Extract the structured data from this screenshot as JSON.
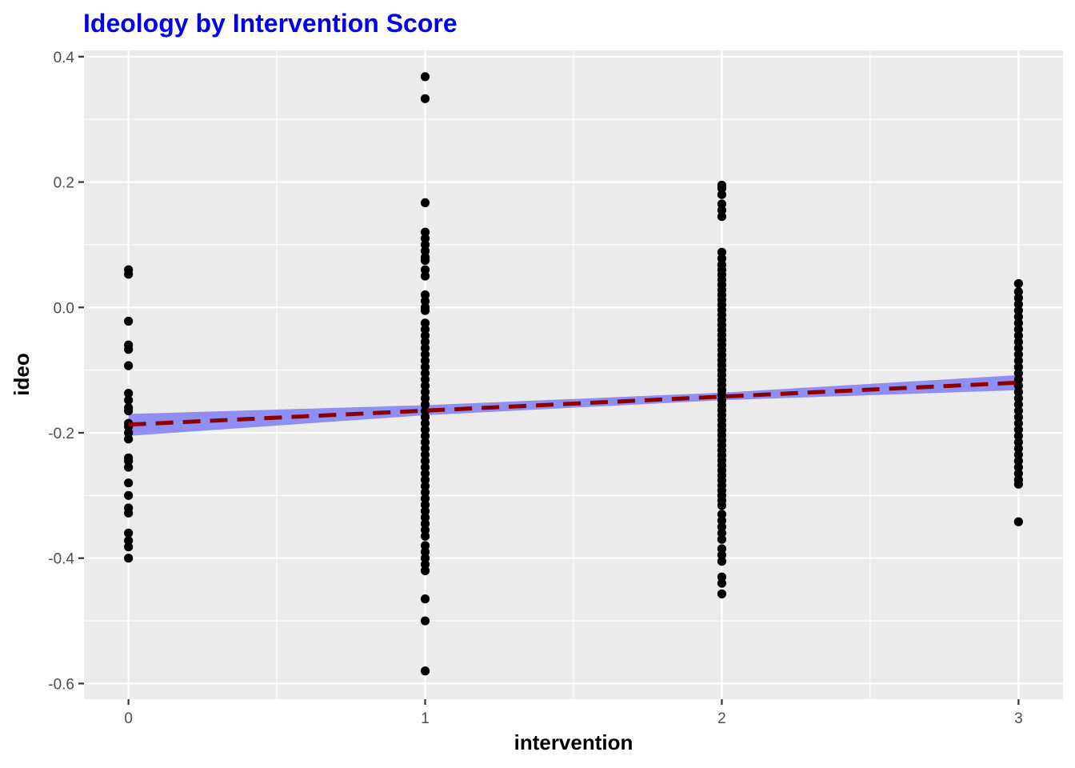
{
  "chart_data": {
    "type": "scatter",
    "title": "Ideology by Intervention Score",
    "xlabel": "intervention",
    "ylabel": "ideo",
    "xlim": [
      -0.15,
      3.15
    ],
    "ylim": [
      -0.625,
      0.41
    ],
    "x_ticks": [
      0,
      1,
      2,
      3
    ],
    "x_tick_labels": [
      "0",
      "1",
      "2",
      "3"
    ],
    "x_minor_ticks": [
      0.5,
      1.5,
      2.5
    ],
    "y_ticks": [
      -0.6,
      -0.4,
      -0.2,
      0.0,
      0.2,
      0.4
    ],
    "y_tick_labels": [
      "-0.6",
      "-0.4",
      "-0.2",
      "0.0",
      "0.2",
      "0.4"
    ],
    "y_minor_ticks": [
      -0.5,
      -0.3,
      -0.1,
      0.1,
      0.3
    ],
    "grid": true,
    "background": "#ebebeb",
    "grid_color": "#ffffff",
    "title_color": "#0000ee",
    "point_color": "#000000",
    "series": [
      {
        "x": 0,
        "y": [
          0.06,
          0.053,
          -0.022,
          -0.06,
          -0.067,
          -0.093,
          -0.137,
          -0.148,
          -0.16,
          -0.165,
          -0.185,
          -0.19,
          -0.2,
          -0.21,
          -0.24,
          -0.245,
          -0.255,
          -0.28,
          -0.3,
          -0.32,
          -0.328,
          -0.36,
          -0.372,
          -0.382,
          -0.4
        ]
      },
      {
        "x": 1,
        "y": [
          0.368,
          0.333,
          0.167,
          0.12,
          0.11,
          0.1,
          0.09,
          0.08,
          0.075,
          0.06,
          0.05,
          0.02,
          0.01,
          0.0,
          -0.005,
          -0.025,
          -0.035,
          -0.045,
          -0.055,
          -0.065,
          -0.075,
          -0.085,
          -0.095,
          -0.105,
          -0.115,
          -0.125,
          -0.135,
          -0.145,
          -0.155,
          -0.165,
          -0.175,
          -0.185,
          -0.195,
          -0.205,
          -0.215,
          -0.225,
          -0.235,
          -0.245,
          -0.255,
          -0.265,
          -0.275,
          -0.285,
          -0.295,
          -0.305,
          -0.315,
          -0.325,
          -0.335,
          -0.345,
          -0.355,
          -0.365,
          -0.38,
          -0.39,
          -0.4,
          -0.41,
          -0.42,
          -0.465,
          -0.5,
          -0.58
        ]
      },
      {
        "x": 2,
        "y": [
          0.195,
          0.19,
          0.18,
          0.165,
          0.155,
          0.145,
          0.088,
          0.078,
          0.068,
          0.06,
          0.052,
          0.044,
          0.036,
          0.028,
          0.02,
          0.012,
          0.004,
          -0.004,
          -0.012,
          -0.02,
          -0.028,
          -0.036,
          -0.044,
          -0.052,
          -0.06,
          -0.068,
          -0.076,
          -0.084,
          -0.092,
          -0.1,
          -0.108,
          -0.116,
          -0.124,
          -0.132,
          -0.14,
          -0.148,
          -0.156,
          -0.164,
          -0.172,
          -0.18,
          -0.188,
          -0.196,
          -0.204,
          -0.212,
          -0.22,
          -0.228,
          -0.236,
          -0.244,
          -0.252,
          -0.26,
          -0.268,
          -0.276,
          -0.284,
          -0.292,
          -0.3,
          -0.308,
          -0.316,
          -0.33,
          -0.34,
          -0.35,
          -0.36,
          -0.37,
          -0.385,
          -0.395,
          -0.405,
          -0.43,
          -0.44,
          -0.457
        ]
      },
      {
        "x": 3,
        "y": [
          0.038,
          0.025,
          0.015,
          0.005,
          -0.005,
          -0.015,
          -0.025,
          -0.035,
          -0.045,
          -0.055,
          -0.065,
          -0.075,
          -0.085,
          -0.095,
          -0.105,
          -0.115,
          -0.125,
          -0.135,
          -0.145,
          -0.155,
          -0.165,
          -0.175,
          -0.185,
          -0.195,
          -0.205,
          -0.215,
          -0.225,
          -0.235,
          -0.245,
          -0.255,
          -0.265,
          -0.275,
          -0.282,
          -0.342
        ]
      }
    ],
    "fit_line": {
      "x": [
        0,
        3
      ],
      "y": [
        -0.187,
        -0.12
      ],
      "color": "#8b0000",
      "style": "dashed"
    },
    "confidence_band": {
      "x": [
        0,
        1,
        2,
        3
      ],
      "upper": [
        -0.17,
        -0.156,
        -0.136,
        -0.108
      ],
      "lower": [
        -0.205,
        -0.172,
        -0.148,
        -0.132
      ],
      "color": "#6f6ff5"
    }
  }
}
